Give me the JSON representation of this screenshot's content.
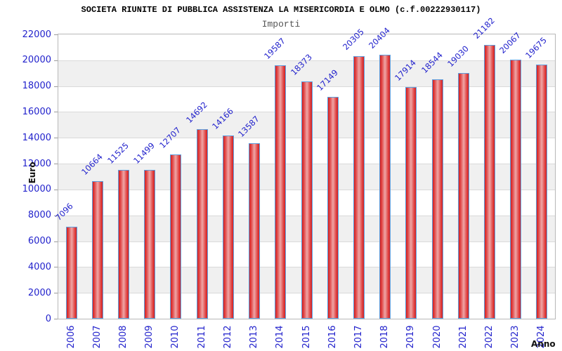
{
  "title": "SOCIETA RIUNITE DI PUBBLICA ASSISTENZA LA MISERICORDIA E OLMO (c.f.00222930117)",
  "subtitle": "Importi",
  "chart_data": {
    "type": "bar",
    "title": "SOCIETA RIUNITE DI PUBBLICA ASSISTENZA LA MISERICORDIA E OLMO (c.f.00222930117)",
    "subtitle": "Importi",
    "xlabel": "Anno",
    "ylabel": "Euro",
    "categories": [
      "2006",
      "2007",
      "2008",
      "2009",
      "2010",
      "2011",
      "2012",
      "2013",
      "2014",
      "2015",
      "2016",
      "2017",
      "2018",
      "2019",
      "2020",
      "2021",
      "2022",
      "2023",
      "2024"
    ],
    "values": [
      7096,
      10664,
      11525,
      11499,
      12707,
      14692,
      14166,
      13587,
      19587,
      18373,
      17149,
      20305,
      20404,
      17914,
      18544,
      19030,
      21182,
      20067,
      19675
    ],
    "ylim": [
      0,
      22000
    ],
    "ytick_step": 2000,
    "yticks": [
      0,
      2000,
      4000,
      6000,
      8000,
      10000,
      12000,
      14000,
      16000,
      18000,
      20000,
      22000
    ],
    "grid": true,
    "bar_labels": true,
    "legend": "none"
  },
  "colors": {
    "axis_text": "#2222cc",
    "bar_edge": "#d42020",
    "bar_center": "#efa6a6",
    "bar_border": "#5d9fdf",
    "stripe": "#f0f0f0",
    "plot_border": "#b8b8b8",
    "title_text": "#000000",
    "subtitle_text": "#555555",
    "axis_title_text": "#111111"
  }
}
